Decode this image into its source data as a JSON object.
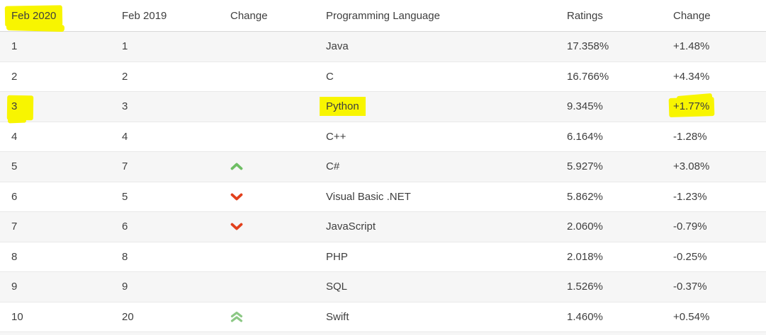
{
  "colors": {
    "highlight": "#f8f500",
    "text": "#3e3e3e",
    "row_alt": "#f6f6f6",
    "arrow_up": "#6ebe64",
    "arrow_down": "#e2401c",
    "arrow_up_double": "#8cc885"
  },
  "table": {
    "columns": [
      {
        "label": "Feb 2020",
        "highlighted": true
      },
      {
        "label": "Feb 2019",
        "highlighted": false
      },
      {
        "label": "Change",
        "highlighted": false
      },
      {
        "label": "Programming Language",
        "highlighted": false
      },
      {
        "label": "Ratings",
        "highlighted": false
      },
      {
        "label": "Change",
        "highlighted": false
      }
    ],
    "rows": [
      {
        "rank_feb2020": "1",
        "rank_feb2019": "1",
        "trend": "none",
        "language": "Java",
        "ratings": "17.358%",
        "change": "+1.48%",
        "highlighted_cells": []
      },
      {
        "rank_feb2020": "2",
        "rank_feb2019": "2",
        "trend": "none",
        "language": "C",
        "ratings": "16.766%",
        "change": "+4.34%",
        "highlighted_cells": []
      },
      {
        "rank_feb2020": "3",
        "rank_feb2019": "3",
        "trend": "none",
        "language": "Python",
        "ratings": "9.345%",
        "change": "+1.77%",
        "highlighted_cells": [
          "rank_feb2020",
          "language",
          "change"
        ]
      },
      {
        "rank_feb2020": "4",
        "rank_feb2019": "4",
        "trend": "none",
        "language": "C++",
        "ratings": "6.164%",
        "change": "-1.28%",
        "highlighted_cells": []
      },
      {
        "rank_feb2020": "5",
        "rank_feb2019": "7",
        "trend": "up",
        "language": "C#",
        "ratings": "5.927%",
        "change": "+3.08%",
        "highlighted_cells": []
      },
      {
        "rank_feb2020": "6",
        "rank_feb2019": "5",
        "trend": "down",
        "language": "Visual Basic .NET",
        "ratings": "5.862%",
        "change": "-1.23%",
        "highlighted_cells": []
      },
      {
        "rank_feb2020": "7",
        "rank_feb2019": "6",
        "trend": "down",
        "language": "JavaScript",
        "ratings": "2.060%",
        "change": "-0.79%",
        "highlighted_cells": []
      },
      {
        "rank_feb2020": "8",
        "rank_feb2019": "8",
        "trend": "none",
        "language": "PHP",
        "ratings": "2.018%",
        "change": "-0.25%",
        "highlighted_cells": []
      },
      {
        "rank_feb2020": "9",
        "rank_feb2019": "9",
        "trend": "none",
        "language": "SQL",
        "ratings": "1.526%",
        "change": "-0.37%",
        "highlighted_cells": []
      },
      {
        "rank_feb2020": "10",
        "rank_feb2019": "20",
        "trend": "up-double",
        "language": "Swift",
        "ratings": "1.460%",
        "change": "+0.54%",
        "highlighted_cells": []
      }
    ]
  }
}
